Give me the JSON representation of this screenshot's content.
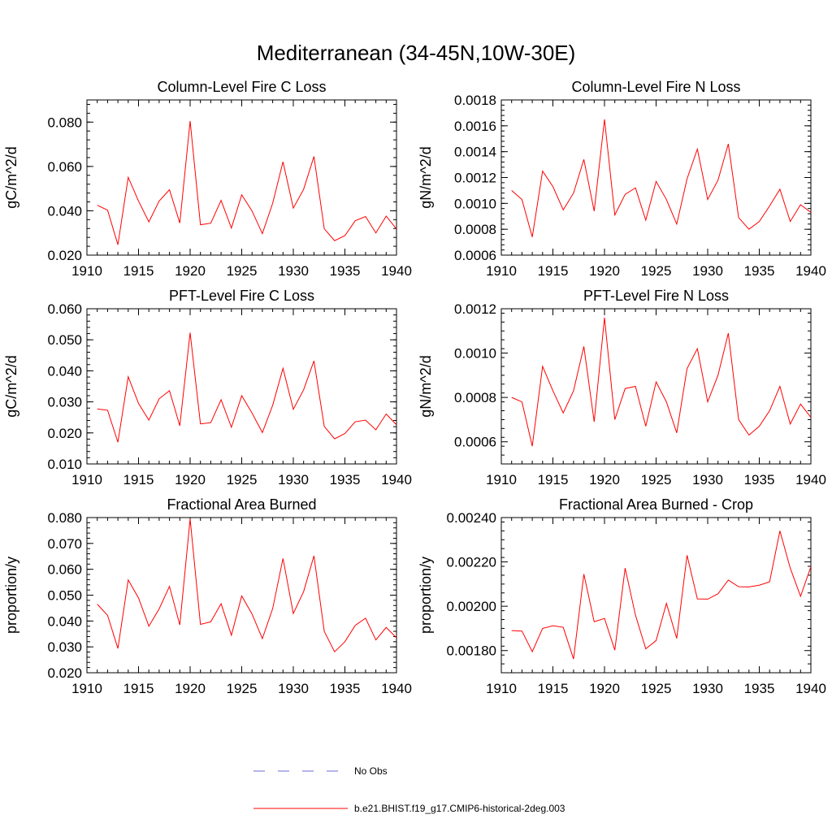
{
  "figure": {
    "title": "Mediterranean (34-45N,10W-30E)"
  },
  "colors": {
    "series": "#ff0000",
    "obs": "#6a6ad4",
    "axis": "#000000"
  },
  "legend": {
    "entries": [
      {
        "label": "No Obs",
        "style": "dashed",
        "color": "#6a6ad4"
      },
      {
        "label": "b.e21.BHIST.f19_g17.CMIP6-historical-2deg.003",
        "style": "solid",
        "color": "#ff0000"
      }
    ],
    "placement": "bottom-center"
  },
  "chart_data": [
    {
      "type": "line",
      "title": "Column-Level Fire C Loss",
      "ylabel": "gC/m^2/d",
      "xlim": [
        1910,
        1940
      ],
      "ylim": [
        0.02,
        0.09
      ],
      "xticks": [
        1910,
        1915,
        1920,
        1925,
        1930,
        1935,
        1940
      ],
      "xtick_labels": [
        "1910",
        "1915",
        "1920",
        "1925",
        "1930",
        "1935",
        "1940"
      ],
      "yticks": [
        0.02,
        0.04,
        0.06,
        0.08
      ],
      "ytick_labels": [
        "0.020",
        "0.040",
        "0.060",
        "0.080"
      ],
      "yminor": 0.004,
      "x": [
        1911,
        1912,
        1913,
        1914,
        1915,
        1916,
        1917,
        1918,
        1919,
        1920,
        1921,
        1922,
        1923,
        1924,
        1925,
        1926,
        1927,
        1928,
        1929,
        1930,
        1931,
        1932,
        1933,
        1934,
        1935,
        1936,
        1937,
        1938,
        1939,
        1940
      ],
      "values": [
        0.0425,
        0.0403,
        0.0247,
        0.0551,
        0.0444,
        0.035,
        0.0444,
        0.0495,
        0.0345,
        0.0805,
        0.0337,
        0.0344,
        0.0447,
        0.0322,
        0.0472,
        0.0399,
        0.0297,
        0.0434,
        0.0621,
        0.0412,
        0.0497,
        0.0645,
        0.0319,
        0.0265,
        0.0288,
        0.0355,
        0.0374,
        0.03,
        0.0376,
        0.0318
      ]
    },
    {
      "type": "line",
      "title": "Column-Level Fire N Loss",
      "ylabel": "gN/m^2/d",
      "xlim": [
        1910,
        1940
      ],
      "ylim": [
        0.0006,
        0.0018
      ],
      "xticks": [
        1910,
        1915,
        1920,
        1925,
        1930,
        1935,
        1940
      ],
      "xtick_labels": [
        "1910",
        "1915",
        "1920",
        "1925",
        "1930",
        "1935",
        "1940"
      ],
      "yticks": [
        0.0006,
        0.0008,
        0.001,
        0.0012,
        0.0014,
        0.0016,
        0.0018
      ],
      "ytick_labels": [
        "0.0006",
        "0.0008",
        "0.0010",
        "0.0012",
        "0.0014",
        "0.0016",
        "0.0018"
      ],
      "yminor": 4e-05,
      "x": [
        1911,
        1912,
        1913,
        1914,
        1915,
        1916,
        1917,
        1918,
        1919,
        1920,
        1921,
        1922,
        1923,
        1924,
        1925,
        1926,
        1927,
        1928,
        1929,
        1930,
        1931,
        1932,
        1933,
        1934,
        1935,
        1936,
        1937,
        1938,
        1939,
        1940
      ],
      "values": [
        0.0011,
        0.00103,
        0.00074,
        0.00125,
        0.00113,
        0.00095,
        0.00108,
        0.00134,
        0.00094,
        0.00165,
        0.00091,
        0.00107,
        0.00112,
        0.00087,
        0.00117,
        0.00103,
        0.00084,
        0.00119,
        0.00142,
        0.00103,
        0.00118,
        0.00146,
        0.00089,
        0.0008,
        0.00086,
        0.00098,
        0.00111,
        0.00086,
        0.00099,
        0.00093
      ]
    },
    {
      "type": "line",
      "title": "PFT-Level Fire C Loss",
      "ylabel": "gC/m^2/d",
      "xlim": [
        1910,
        1940
      ],
      "ylim": [
        0.01,
        0.06
      ],
      "xticks": [
        1910,
        1915,
        1920,
        1925,
        1930,
        1935,
        1940
      ],
      "xtick_labels": [
        "1910",
        "1915",
        "1920",
        "1925",
        "1930",
        "1935",
        "1940"
      ],
      "yticks": [
        0.01,
        0.02,
        0.03,
        0.04,
        0.05,
        0.06
      ],
      "ytick_labels": [
        "0.010",
        "0.020",
        "0.030",
        "0.040",
        "0.050",
        "0.060"
      ],
      "yminor": 0.002,
      "x": [
        1911,
        1912,
        1913,
        1914,
        1915,
        1916,
        1917,
        1918,
        1919,
        1920,
        1921,
        1922,
        1923,
        1924,
        1925,
        1926,
        1927,
        1928,
        1929,
        1930,
        1931,
        1932,
        1933,
        1934,
        1935,
        1936,
        1937,
        1938,
        1939,
        1940
      ],
      "values": [
        0.0277,
        0.0273,
        0.017,
        0.0381,
        0.0295,
        0.0241,
        0.031,
        0.0336,
        0.0223,
        0.0523,
        0.0229,
        0.0233,
        0.0307,
        0.0218,
        0.032,
        0.0264,
        0.0201,
        0.0289,
        0.0408,
        0.0276,
        0.0339,
        0.0432,
        0.0221,
        0.0181,
        0.0198,
        0.0236,
        0.0241,
        0.021,
        0.0261,
        0.0226
      ]
    },
    {
      "type": "line",
      "title": "PFT-Level Fire N Loss",
      "ylabel": "gN/m^2/d",
      "xlim": [
        1910,
        1940
      ],
      "ylim": [
        0.0005,
        0.0012
      ],
      "xticks": [
        1910,
        1915,
        1920,
        1925,
        1930,
        1935,
        1940
      ],
      "xtick_labels": [
        "1910",
        "1915",
        "1920",
        "1925",
        "1930",
        "1935",
        "1940"
      ],
      "yticks": [
        0.0006,
        0.0008,
        0.001,
        0.0012
      ],
      "ytick_labels": [
        "0.0006",
        "0.0008",
        "0.0010",
        "0.0012"
      ],
      "yminor": 4e-05,
      "x": [
        1911,
        1912,
        1913,
        1914,
        1915,
        1916,
        1917,
        1918,
        1919,
        1920,
        1921,
        1922,
        1923,
        1924,
        1925,
        1926,
        1927,
        1928,
        1929,
        1930,
        1931,
        1932,
        1933,
        1934,
        1935,
        1936,
        1937,
        1938,
        1939,
        1940
      ],
      "values": [
        0.0008,
        0.00078,
        0.00058,
        0.00094,
        0.00083,
        0.00073,
        0.00083,
        0.00103,
        0.00069,
        0.00116,
        0.0007,
        0.00084,
        0.00085,
        0.00067,
        0.00087,
        0.00078,
        0.00064,
        0.00093,
        0.00102,
        0.00078,
        0.0009,
        0.00109,
        0.0007,
        0.00063,
        0.00067,
        0.00074,
        0.00085,
        0.00068,
        0.00077,
        0.00071
      ]
    },
    {
      "type": "line",
      "title": "Fractional Area Burned",
      "ylabel": "proportion/y",
      "xlim": [
        1910,
        1940
      ],
      "ylim": [
        0.02,
        0.08
      ],
      "xticks": [
        1910,
        1915,
        1920,
        1925,
        1930,
        1935,
        1940
      ],
      "xtick_labels": [
        "1910",
        "1915",
        "1920",
        "1925",
        "1930",
        "1935",
        "1940"
      ],
      "yticks": [
        0.02,
        0.03,
        0.04,
        0.05,
        0.06,
        0.07,
        0.08
      ],
      "ytick_labels": [
        "0.020",
        "0.030",
        "0.040",
        "0.050",
        "0.060",
        "0.070",
        "0.080"
      ],
      "yminor": 0.002,
      "x": [
        1911,
        1912,
        1913,
        1914,
        1915,
        1916,
        1917,
        1918,
        1919,
        1920,
        1921,
        1922,
        1923,
        1924,
        1925,
        1926,
        1927,
        1928,
        1929,
        1930,
        1931,
        1932,
        1933,
        1934,
        1935,
        1936,
        1937,
        1938,
        1939,
        1940
      ],
      "values": [
        0.0465,
        0.0422,
        0.0294,
        0.0559,
        0.0489,
        0.038,
        0.0447,
        0.0534,
        0.0385,
        0.0795,
        0.0387,
        0.0397,
        0.0467,
        0.0345,
        0.0497,
        0.0427,
        0.0332,
        0.0448,
        0.0642,
        0.0429,
        0.0514,
        0.0652,
        0.036,
        0.0281,
        0.032,
        0.0383,
        0.0411,
        0.0327,
        0.0375,
        0.0335
      ]
    },
    {
      "type": "line",
      "title": "Fractional Area Burned - Crop",
      "ylabel": "proportion/y",
      "xlim": [
        1910,
        1940
      ],
      "ylim": [
        0.0017,
        0.0024
      ],
      "xticks": [
        1910,
        1915,
        1920,
        1925,
        1930,
        1935,
        1940
      ],
      "xtick_labels": [
        "1910",
        "1915",
        "1920",
        "1925",
        "1930",
        "1935",
        "1940"
      ],
      "yticks": [
        0.0018,
        0.002,
        0.0022,
        0.0024
      ],
      "ytick_labels": [
        "0.00180",
        "0.00200",
        "0.00220",
        "0.00240"
      ],
      "yminor": 4e-05,
      "x": [
        1911,
        1912,
        1913,
        1914,
        1915,
        1916,
        1917,
        1918,
        1919,
        1920,
        1921,
        1922,
        1923,
        1924,
        1925,
        1926,
        1927,
        1928,
        1929,
        1930,
        1931,
        1932,
        1933,
        1934,
        1935,
        1936,
        1937,
        1938,
        1939,
        1940
      ],
      "values": [
        0.00189,
        0.001888,
        0.001795,
        0.0019,
        0.001912,
        0.001905,
        0.001762,
        0.002145,
        0.00193,
        0.001945,
        0.001802,
        0.002172,
        0.00196,
        0.001808,
        0.001845,
        0.002013,
        0.001855,
        0.00223,
        0.002033,
        0.002032,
        0.002056,
        0.002118,
        0.002088,
        0.002087,
        0.002095,
        0.00211,
        0.00234,
        0.002172,
        0.002045,
        0.002178
      ]
    }
  ]
}
